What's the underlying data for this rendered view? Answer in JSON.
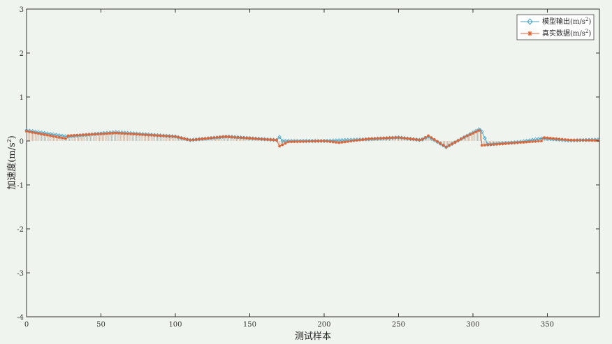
{
  "chart_data": {
    "type": "line",
    "xlabel": "测试样本",
    "ylabel_main": "加速度(m/s",
    "ylabel_sup": "2",
    "ylabel_tail": ")",
    "xlim": [
      0,
      385
    ],
    "ylim": [
      -4,
      3
    ],
    "x_ticks": [
      0,
      50,
      100,
      150,
      200,
      250,
      300,
      350
    ],
    "y_ticks": [
      3,
      2,
      1,
      0,
      -1,
      -2,
      -3,
      -4
    ],
    "grid": false,
    "legend_position": "top-right",
    "legend": [
      {
        "main": "模型输出(m/s",
        "sup": "2",
        "tail": ")"
      },
      {
        "main": "真实数据(m/s",
        "sup": "2",
        "tail": ")"
      }
    ],
    "colors": {
      "model": "#4aa3c4",
      "real": "#d8663a",
      "stems": "#b49580"
    },
    "series": [
      {
        "marker": "diamond",
        "x": [
          0,
          27,
          60,
          100,
          110,
          135,
          168,
          170,
          172,
          200,
          230,
          250,
          265,
          270,
          282,
          295,
          305,
          310,
          330,
          347,
          365,
          385
        ],
        "values": [
          0.24,
          0.1,
          0.2,
          0.1,
          0.02,
          0.1,
          0.02,
          0.09,
          0.0,
          0.0,
          0.04,
          0.08,
          0.02,
          0.1,
          -0.14,
          0.1,
          0.28,
          -0.08,
          -0.03,
          0.06,
          0.01,
          0.03
        ]
      },
      {
        "marker": "star",
        "x": [
          0,
          27,
          28,
          60,
          100,
          110,
          133,
          168,
          170,
          176,
          200,
          210,
          230,
          250,
          265,
          270,
          282,
          295,
          305,
          306,
          330,
          346,
          347,
          365,
          385
        ],
        "values": [
          0.22,
          0.05,
          0.12,
          0.18,
          0.1,
          0.02,
          0.1,
          0.02,
          -0.12,
          -0.02,
          0.0,
          -0.04,
          0.05,
          0.08,
          0.02,
          0.12,
          -0.14,
          0.1,
          0.25,
          -0.1,
          -0.04,
          0.0,
          0.08,
          0.02,
          0.01
        ]
      }
    ]
  }
}
